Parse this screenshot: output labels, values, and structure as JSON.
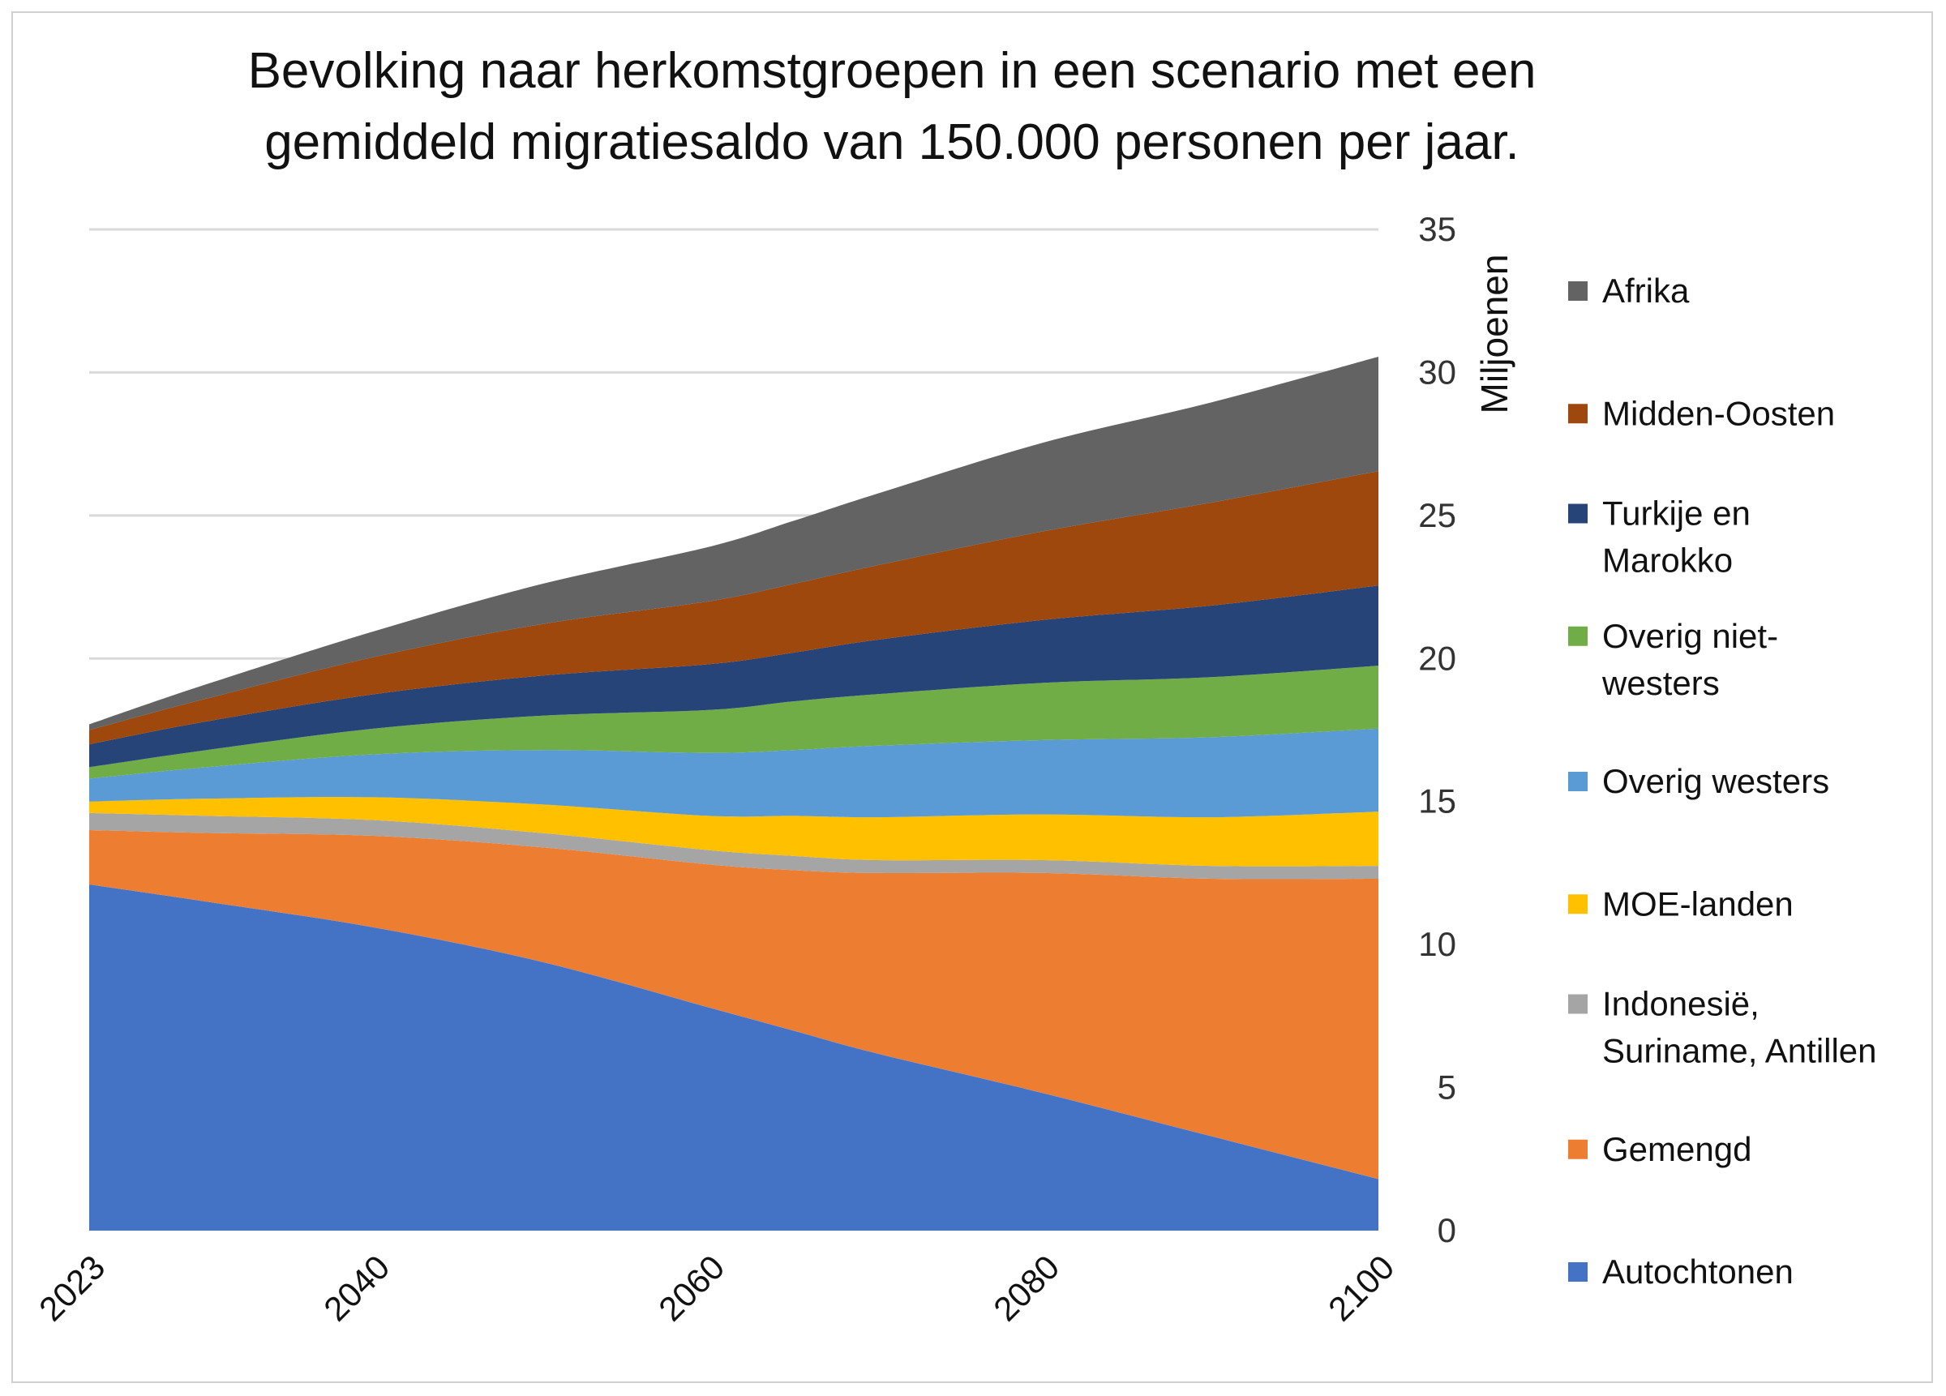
{
  "chart_data": {
    "type": "area",
    "stacked": true,
    "title_lines": [
      "Bevolking naar herkomstgroepen in een scenario met een",
      "gemiddeld migratiesaldo van 150.000 personen per jaar."
    ],
    "ylabel": "Miljoenen",
    "xlabel": "",
    "y_axis_side": "right",
    "ylim": [
      0,
      35
    ],
    "yticks": [
      "0",
      "5",
      "10",
      "15",
      "20",
      "25",
      "30",
      "35"
    ],
    "xlim": [
      2023,
      2100
    ],
    "xtick_labels": [
      "2023",
      "2040",
      "2060",
      "2080",
      "2100"
    ],
    "grid": true,
    "legend_position": "right",
    "x": [
      2023,
      2030,
      2040,
      2050,
      2060,
      2065,
      2070,
      2080,
      2090,
      2100
    ],
    "series": [
      {
        "name": "Autochtonen",
        "color": "#4472C4",
        "values": [
          12.1,
          11.5,
          10.6,
          9.4,
          7.8,
          7.0,
          6.2,
          4.8,
          3.3,
          1.8
        ]
      },
      {
        "name": "Gemengd",
        "color": "#ED7D31",
        "values": [
          1.9,
          2.4,
          3.2,
          4.0,
          5.0,
          5.6,
          6.3,
          7.7,
          9.0,
          10.5
        ]
      },
      {
        "name": "Indonesië, Suriname, Antillen",
        "color": "#A5A5A5",
        "values": [
          0.6,
          0.6,
          0.55,
          0.5,
          0.5,
          0.5,
          0.45,
          0.45,
          0.45,
          0.45
        ]
      },
      {
        "name": "MOE-landen",
        "color": "#FFC000",
        "values": [
          0.4,
          0.6,
          0.8,
          1.0,
          1.2,
          1.4,
          1.5,
          1.6,
          1.7,
          1.9
        ]
      },
      {
        "name": "Overig westers",
        "color": "#5B9BD5",
        "values": [
          0.8,
          1.1,
          1.5,
          1.9,
          2.2,
          2.3,
          2.5,
          2.6,
          2.8,
          2.9
        ]
      },
      {
        "name": "Overig niet-westers",
        "color": "#70AD47",
        "values": [
          0.4,
          0.6,
          0.9,
          1.2,
          1.5,
          1.7,
          1.8,
          2.0,
          2.1,
          2.2
        ]
      },
      {
        "name": "Turkije en Marokko",
        "color": "#264478",
        "values": [
          0.8,
          1.0,
          1.2,
          1.4,
          1.6,
          1.7,
          1.9,
          2.2,
          2.5,
          2.8
        ]
      },
      {
        "name": "Midden-Oosten",
        "color": "#9E480E",
        "values": [
          0.5,
          0.8,
          1.3,
          1.8,
          2.2,
          2.4,
          2.6,
          3.1,
          3.6,
          4.0
        ]
      },
      {
        "name": "Afrika",
        "color": "#636363",
        "values": [
          0.2,
          0.5,
          0.9,
          1.4,
          1.9,
          2.2,
          2.5,
          3.1,
          3.5,
          4.0
        ]
      }
    ],
    "legend_order": [
      {
        "lines": [
          "Afrika"
        ],
        "color": "#636363"
      },
      {
        "lines": [
          "Midden-Oosten"
        ],
        "color": "#9E480E"
      },
      {
        "lines": [
          "Turkije en",
          "Marokko"
        ],
        "color": "#264478"
      },
      {
        "lines": [
          "Overig niet-",
          "westers"
        ],
        "color": "#70AD47"
      },
      {
        "lines": [
          "Overig westers"
        ],
        "color": "#5B9BD5"
      },
      {
        "lines": [
          "MOE-landen"
        ],
        "color": "#FFC000"
      },
      {
        "lines": [
          "Indonesië,",
          "Suriname, Antillen"
        ],
        "color": "#A5A5A5"
      },
      {
        "lines": [
          "Gemengd"
        ],
        "color": "#ED7D31"
      },
      {
        "lines": [
          "Autochtonen"
        ],
        "color": "#4472C4"
      }
    ]
  }
}
